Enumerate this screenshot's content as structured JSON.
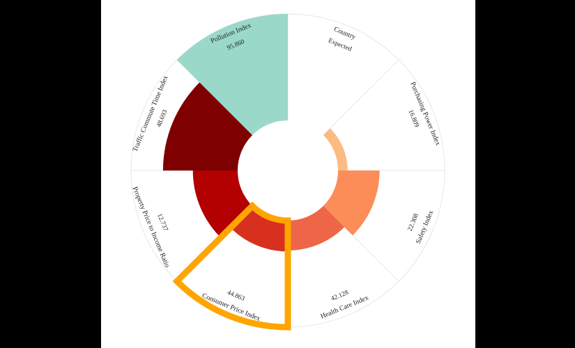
{
  "chart_data": {
    "type": "radial-bar",
    "title": "",
    "categories": [
      "Country",
      "Purchasing Power Index",
      "Safety Index",
      "Health Care Index",
      "Consumer Price Index",
      "Property Price to Income Ratio",
      "Traffic Commute Time Index",
      "Pollution Index"
    ],
    "value_labels": [
      "Expected",
      "16.809",
      "22.308",
      "42.128",
      "44.863",
      "12.737",
      "48.693",
      "95.860"
    ],
    "values": [
      0,
      16.809,
      22.308,
      42.128,
      44.863,
      12.737,
      48.693,
      95.86
    ],
    "bar_lengths": [
      0,
      0.09,
      0.39,
      0.28,
      0.29,
      0.42,
      0.7,
      1.0
    ],
    "colors": [
      "#ffffff",
      "#fdbb84",
      "#fc8d59",
      "#ef6548",
      "#d7301f",
      "#b30000",
      "#7f0000",
      "#9ad9c9"
    ],
    "highlight": {
      "category": "Consumer Price Index",
      "color": "#ffa500"
    },
    "inner_radius_fraction": 0.32,
    "grid": true,
    "legend": "none"
  }
}
